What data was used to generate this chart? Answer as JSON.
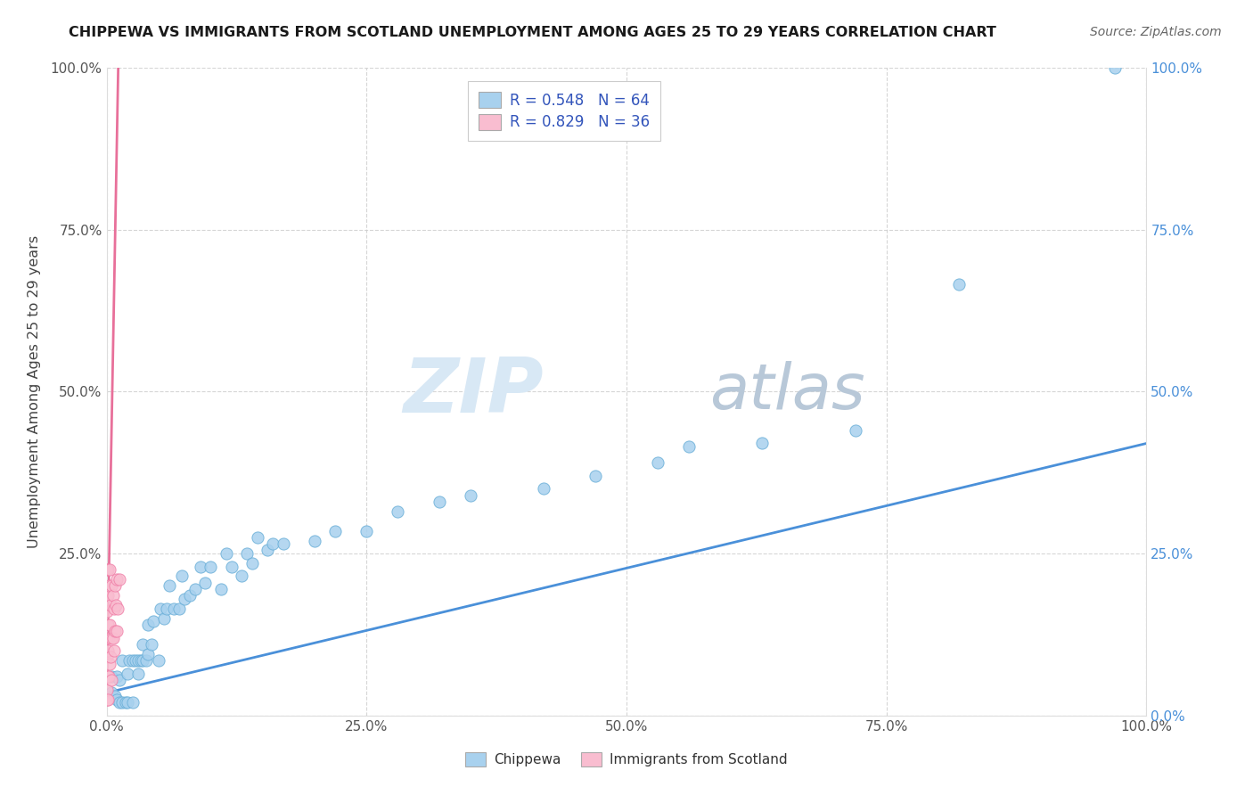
{
  "title": "CHIPPEWA VS IMMIGRANTS FROM SCOTLAND UNEMPLOYMENT AMONG AGES 25 TO 29 YEARS CORRELATION CHART",
  "source": "Source: ZipAtlas.com",
  "ylabel": "Unemployment Among Ages 25 to 29 years",
  "xlim": [
    0,
    1.0
  ],
  "ylim": [
    0,
    1.0
  ],
  "xtick_labels": [
    "0.0%",
    "25.0%",
    "50.0%",
    "75.0%",
    "100.0%"
  ],
  "xtick_vals": [
    0.0,
    0.25,
    0.5,
    0.75,
    1.0
  ],
  "ytick_labels": [
    "",
    "25.0%",
    "50.0%",
    "75.0%",
    "100.0%"
  ],
  "ytick_vals": [
    0.0,
    0.25,
    0.5,
    0.75,
    1.0
  ],
  "right_ytick_labels": [
    "100.0%",
    "75.0%",
    "50.0%",
    "25.0%",
    "0.0%"
  ],
  "right_ytick_vals": [
    1.0,
    0.75,
    0.5,
    0.25,
    0.0
  ],
  "chippewa_color": "#A8D1EE",
  "scotland_color": "#F9BDD0",
  "chippewa_edge_color": "#6AAFD8",
  "scotland_edge_color": "#F080A8",
  "trend_chippewa_color": "#4A90D9",
  "trend_scotland_color": "#E8709A",
  "legend_box_color_chippewa": "#A8D1EE",
  "legend_box_color_scotland": "#F9BDD0",
  "legend_text_color": "#3355BB",
  "background_color": "#FFFFFF",
  "grid_color": "#CCCCCC",
  "watermark_zip": "ZIP",
  "watermark_atlas": "atlas",
  "chippewa_x": [
    0.005,
    0.005,
    0.008,
    0.01,
    0.01,
    0.012,
    0.012,
    0.015,
    0.015,
    0.018,
    0.02,
    0.02,
    0.022,
    0.025,
    0.025,
    0.028,
    0.03,
    0.03,
    0.033,
    0.035,
    0.035,
    0.038,
    0.04,
    0.04,
    0.043,
    0.045,
    0.05,
    0.052,
    0.055,
    0.058,
    0.06,
    0.065,
    0.07,
    0.072,
    0.075,
    0.08,
    0.085,
    0.09,
    0.095,
    0.1,
    0.11,
    0.115,
    0.12,
    0.13,
    0.135,
    0.14,
    0.145,
    0.155,
    0.16,
    0.17,
    0.2,
    0.22,
    0.25,
    0.28,
    0.32,
    0.35,
    0.42,
    0.47,
    0.53,
    0.56,
    0.63,
    0.72,
    0.82,
    0.97
  ],
  "chippewa_y": [
    0.035,
    0.06,
    0.03,
    0.025,
    0.06,
    0.02,
    0.055,
    0.02,
    0.085,
    0.02,
    0.02,
    0.065,
    0.085,
    0.02,
    0.085,
    0.085,
    0.065,
    0.085,
    0.085,
    0.085,
    0.11,
    0.085,
    0.095,
    0.14,
    0.11,
    0.145,
    0.085,
    0.165,
    0.15,
    0.165,
    0.2,
    0.165,
    0.165,
    0.215,
    0.18,
    0.185,
    0.195,
    0.23,
    0.205,
    0.23,
    0.195,
    0.25,
    0.23,
    0.215,
    0.25,
    0.235,
    0.275,
    0.255,
    0.265,
    0.265,
    0.27,
    0.285,
    0.285,
    0.315,
    0.33,
    0.34,
    0.35,
    0.37,
    0.39,
    0.415,
    0.42,
    0.44,
    0.665,
    1.0
  ],
  "scotland_x": [
    0.0,
    0.0,
    0.0,
    0.0,
    0.0,
    0.0,
    0.0,
    0.0,
    0.001,
    0.001,
    0.001,
    0.001,
    0.001,
    0.001,
    0.002,
    0.002,
    0.002,
    0.003,
    0.003,
    0.003,
    0.004,
    0.004,
    0.005,
    0.005,
    0.005,
    0.006,
    0.006,
    0.007,
    0.007,
    0.008,
    0.008,
    0.009,
    0.01,
    0.01,
    0.011,
    0.012
  ],
  "scotland_y": [
    0.025,
    0.04,
    0.06,
    0.09,
    0.12,
    0.16,
    0.185,
    0.225,
    0.025,
    0.06,
    0.1,
    0.14,
    0.185,
    0.225,
    0.06,
    0.12,
    0.2,
    0.08,
    0.14,
    0.225,
    0.09,
    0.17,
    0.055,
    0.12,
    0.2,
    0.12,
    0.185,
    0.1,
    0.165,
    0.13,
    0.2,
    0.17,
    0.13,
    0.21,
    0.165,
    0.21
  ],
  "chippewa_trend_x": [
    0.0,
    1.0
  ],
  "chippewa_trend_y": [
    0.035,
    0.42
  ],
  "scotland_trend_x": [
    0.0,
    0.0115
  ],
  "scotland_trend_y": [
    0.018,
    1.02
  ]
}
